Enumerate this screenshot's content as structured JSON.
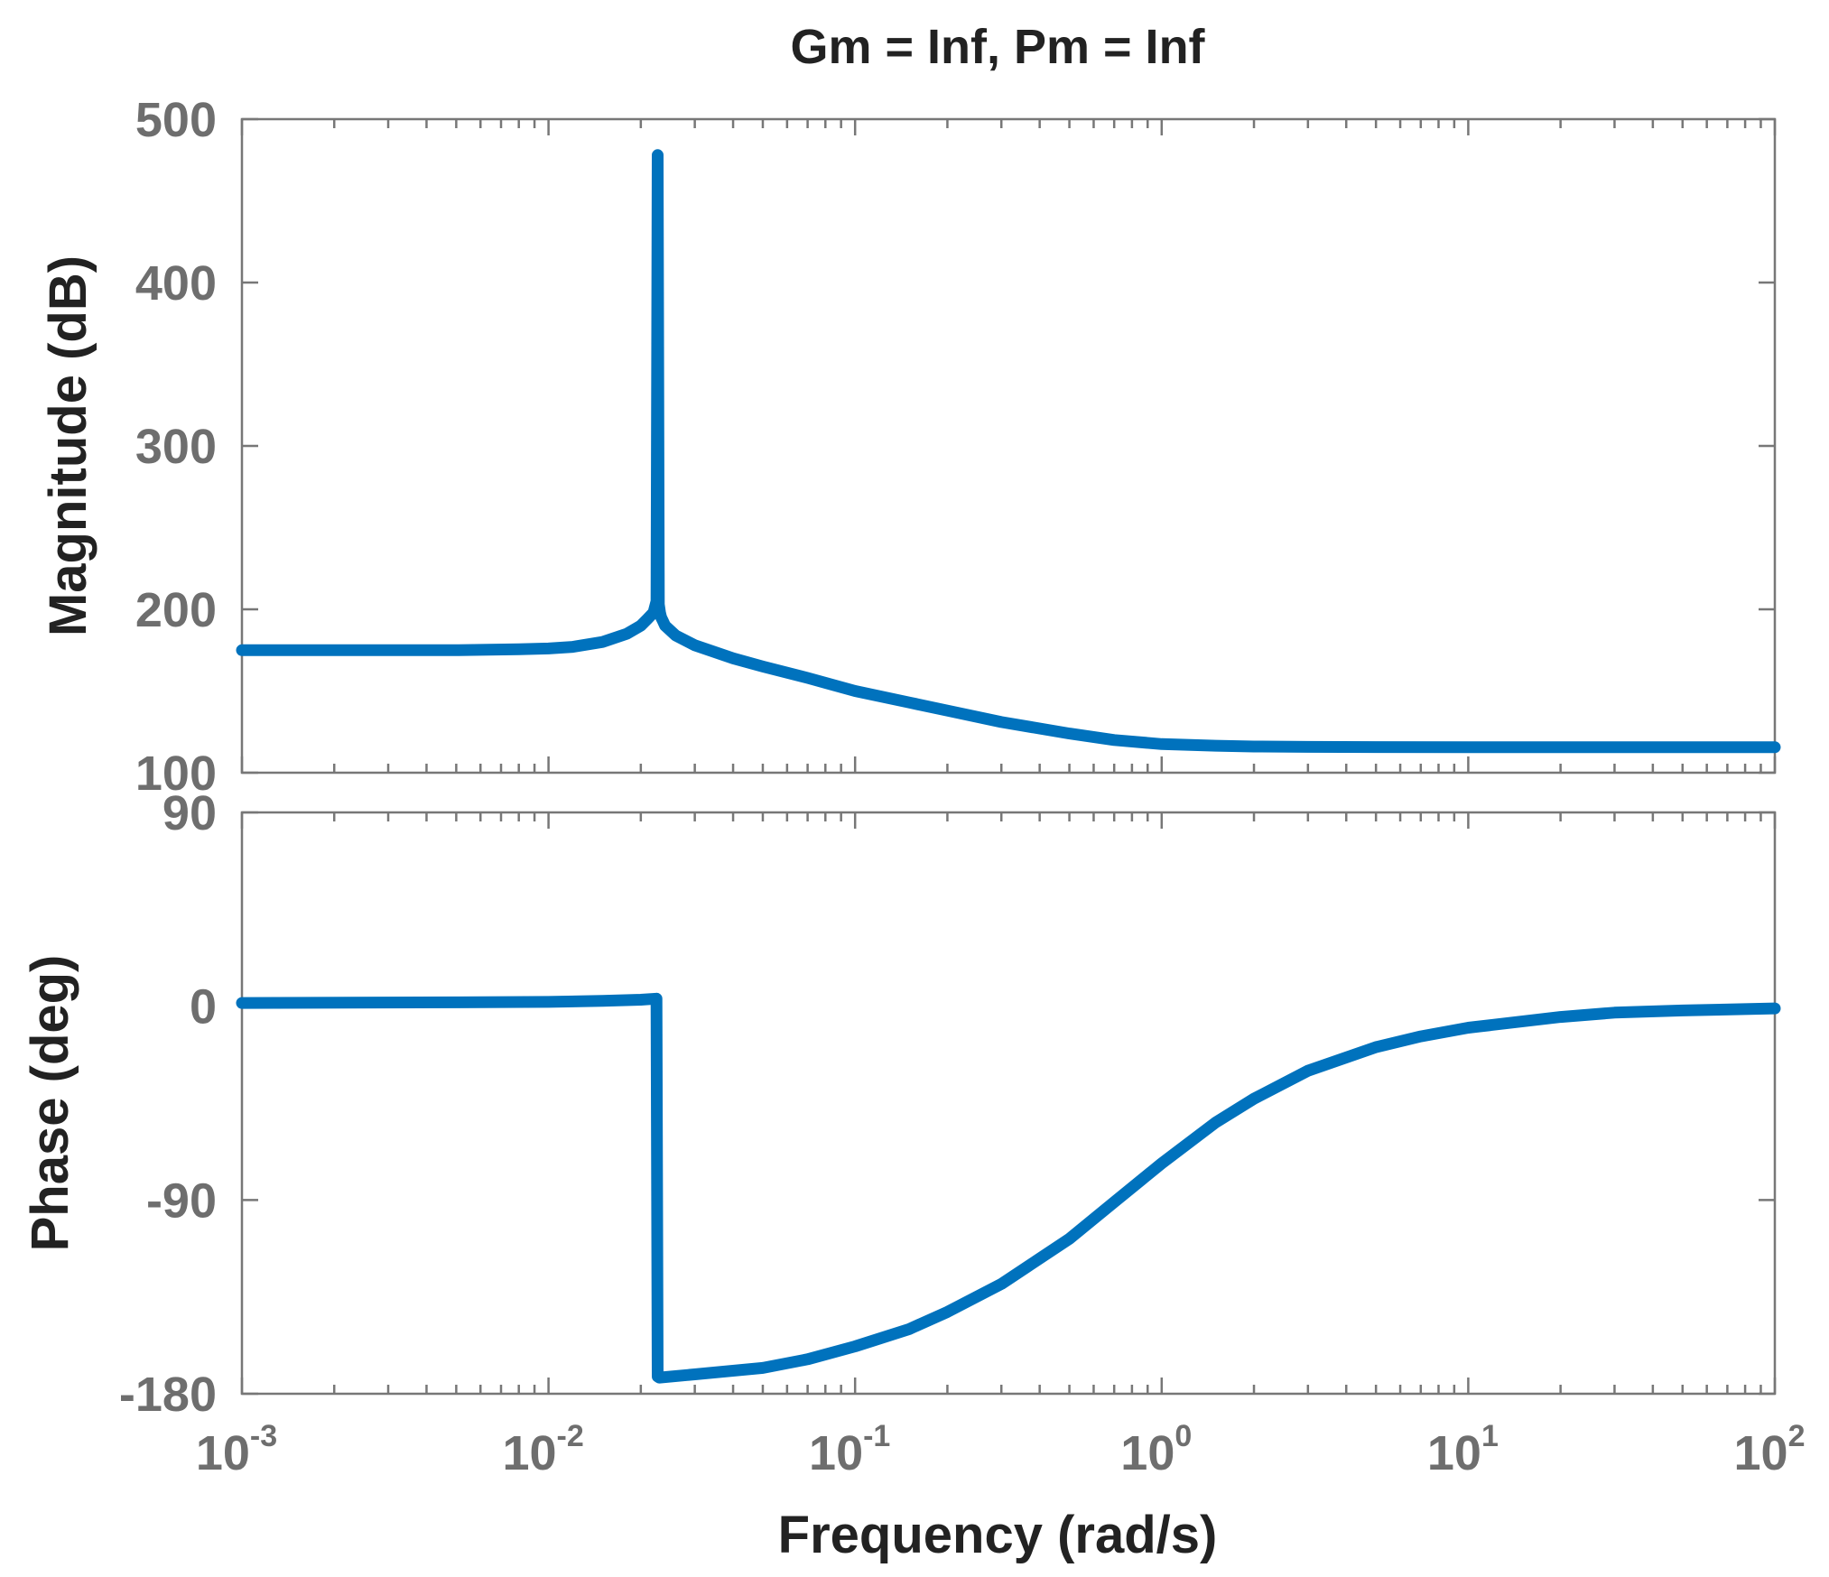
{
  "chart_data": [
    {
      "type": "line",
      "title": "Gm = Inf,  Pm = Inf",
      "ylabel": "Magnitude (dB)",
      "xlabel": "",
      "xscale": "log",
      "xlim": [
        0.001,
        100
      ],
      "ylim": [
        100,
        500
      ],
      "yticks": [
        "100",
        "200",
        "300",
        "400",
        "500"
      ],
      "grid": false,
      "color": "#0072BD",
      "series": [
        {
          "x": [
            0.001,
            0.002,
            0.005,
            0.008,
            0.01,
            0.012,
            0.015,
            0.018,
            0.02,
            0.021,
            0.022,
            0.0225,
            0.0227,
            0.0229,
            0.0231,
            0.0233,
            0.0236,
            0.024,
            0.026,
            0.03,
            0.04,
            0.05,
            0.07,
            0.1,
            0.15,
            0.2,
            0.3,
            0.5,
            0.7,
            1,
            1.5,
            2,
            3,
            5,
            10,
            20,
            50,
            100
          ],
          "y": [
            175,
            175,
            175,
            175.5,
            176,
            177,
            180,
            185,
            190,
            194,
            198,
            205,
            478,
            203,
            198,
            195,
            193,
            190,
            184,
            178,
            170,
            165,
            158,
            150,
            143,
            138,
            131,
            124,
            120,
            117.5,
            116.5,
            116,
            115.8,
            115.7,
            115.6,
            115.6,
            115.6,
            115.6
          ]
        }
      ]
    },
    {
      "type": "line",
      "xlabel": "Frequency  (rad/s)",
      "ylabel": "Phase (deg)",
      "xscale": "log",
      "xlim": [
        0.001,
        100
      ],
      "ylim": [
        -180,
        90
      ],
      "yticks": [
        "-180",
        "-90",
        "0",
        "90"
      ],
      "xticks": [
        {
          "base": "10",
          "exp": "-3"
        },
        {
          "base": "10",
          "exp": "-2"
        },
        {
          "base": "10",
          "exp": "-1"
        },
        {
          "base": "10",
          "exp": "0"
        },
        {
          "base": "10",
          "exp": "1"
        },
        {
          "base": "10",
          "exp": "2"
        }
      ],
      "grid": false,
      "color": "#0072BD",
      "series": [
        {
          "x": [
            0.001,
            0.005,
            0.01,
            0.015,
            0.02,
            0.0225,
            0.0227,
            0.023,
            0.03,
            0.05,
            0.07,
            0.1,
            0.15,
            0.2,
            0.3,
            0.5,
            0.7,
            1,
            1.5,
            2,
            3,
            5,
            7,
            10,
            20,
            30,
            50,
            100
          ],
          "y": [
            1.5,
            1.8,
            2,
            2.5,
            3,
            3.5,
            -172,
            -172.5,
            -171,
            -168,
            -164,
            -158,
            -150,
            -142,
            -129,
            -108,
            -91,
            -73,
            -54,
            -43,
            -30,
            -19,
            -14,
            -10,
            -5,
            -3,
            -2,
            -1
          ]
        }
      ]
    }
  ]
}
